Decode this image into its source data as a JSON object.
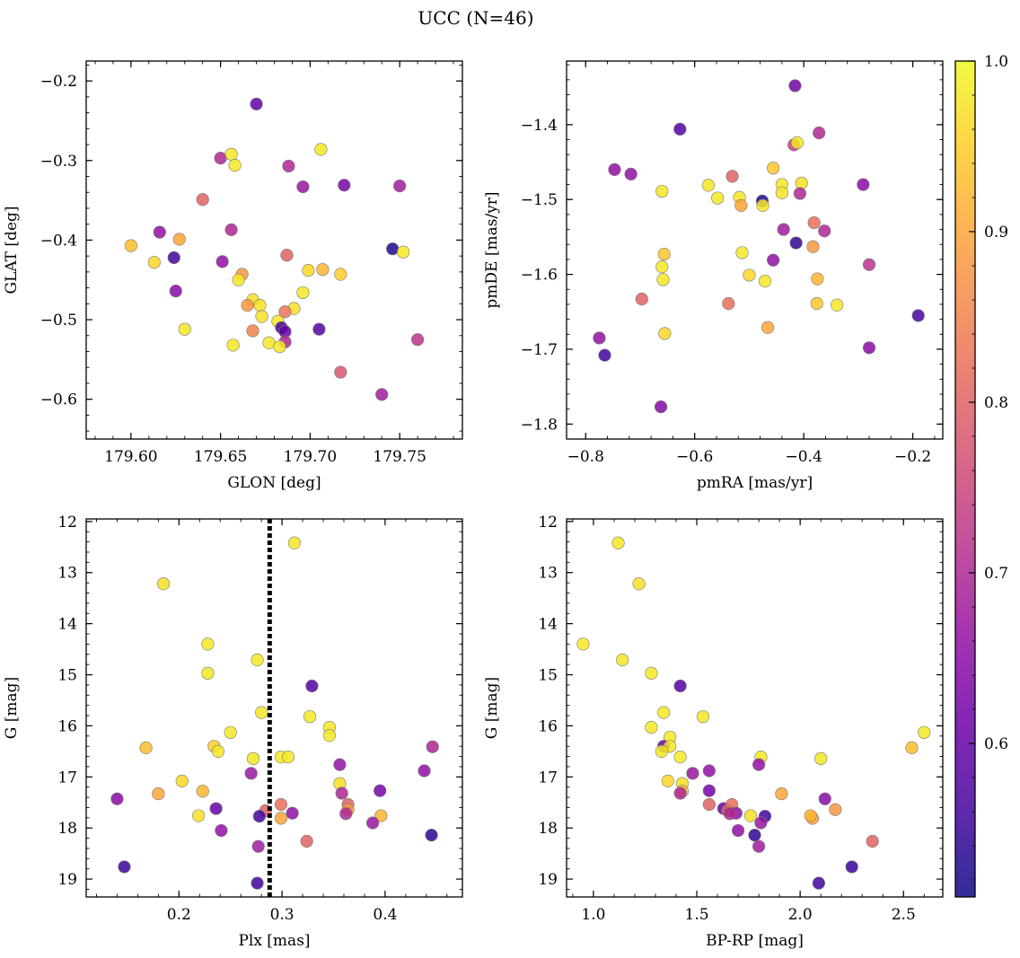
{
  "figure": {
    "title": "UCC (N=46)"
  },
  "colorbar": {
    "colormap": "plasma",
    "range": [
      0.51,
      1.0
    ],
    "ticks": [
      0.6,
      0.7,
      0.8,
      0.9,
      1.0
    ],
    "tick_labels": [
      "0.6",
      "0.7",
      "0.8",
      "0.9",
      "1.0"
    ]
  },
  "chart_data": [
    {
      "type": "scatter",
      "xlabel": "GLON [deg]",
      "ylabel": "GLAT [deg]",
      "xlim": [
        179.575,
        179.785
      ],
      "ylim": [
        -0.65,
        -0.175
      ],
      "y_inverted": false,
      "xticks": [
        179.6,
        179.65,
        179.7,
        179.75
      ],
      "xtick_labels": [
        "179.60",
        "179.65",
        "179.70",
        "179.75"
      ],
      "yticks": [
        -0.6,
        -0.5,
        -0.4,
        -0.3,
        -0.2
      ],
      "ytick_labels": [
        "−0.6",
        "−0.5",
        "−0.4",
        "−0.3",
        "−0.2"
      ],
      "points": [
        [
          179.67,
          -0.229,
          0.6
        ],
        [
          179.65,
          -0.297,
          0.7
        ],
        [
          179.656,
          -0.292,
          0.98
        ],
        [
          179.658,
          -0.306,
          0.98
        ],
        [
          179.688,
          -0.307,
          0.7
        ],
        [
          179.706,
          -0.286,
          0.98
        ],
        [
          179.696,
          -0.333,
          0.67
        ],
        [
          179.719,
          -0.331,
          0.63
        ],
        [
          179.75,
          -0.332,
          0.68
        ],
        [
          179.64,
          -0.349,
          0.8
        ],
        [
          179.616,
          -0.39,
          0.66
        ],
        [
          179.656,
          -0.387,
          0.7
        ],
        [
          179.6,
          -0.407,
          0.93
        ],
        [
          179.627,
          -0.399,
          0.9
        ],
        [
          179.746,
          -0.411,
          0.53
        ],
        [
          179.752,
          -0.415,
          0.98
        ],
        [
          179.613,
          -0.428,
          0.96
        ],
        [
          179.624,
          -0.422,
          0.56
        ],
        [
          179.651,
          -0.427,
          0.66
        ],
        [
          179.687,
          -0.419,
          0.8
        ],
        [
          179.662,
          -0.443,
          0.88
        ],
        [
          179.699,
          -0.438,
          0.96
        ],
        [
          179.707,
          -0.437,
          0.92
        ],
        [
          179.717,
          -0.443,
          0.95
        ],
        [
          179.66,
          -0.45,
          0.98
        ],
        [
          179.625,
          -0.464,
          0.65
        ],
        [
          179.668,
          -0.475,
          0.97
        ],
        [
          179.665,
          -0.482,
          0.88
        ],
        [
          179.672,
          -0.482,
          0.97
        ],
        [
          179.696,
          -0.466,
          0.98
        ],
        [
          179.691,
          -0.486,
          0.97
        ],
        [
          179.686,
          -0.49,
          0.83
        ],
        [
          179.673,
          -0.496,
          0.97
        ],
        [
          179.682,
          -0.502,
          0.98
        ],
        [
          179.684,
          -0.51,
          0.57
        ],
        [
          179.686,
          -0.515,
          0.6
        ],
        [
          179.668,
          -0.514,
          0.85
        ],
        [
          179.63,
          -0.512,
          0.98
        ],
        [
          179.705,
          -0.512,
          0.58
        ],
        [
          179.657,
          -0.532,
          0.98
        ],
        [
          179.677,
          -0.529,
          0.98
        ],
        [
          179.686,
          -0.528,
          0.7
        ],
        [
          179.683,
          -0.534,
          0.98
        ],
        [
          179.76,
          -0.525,
          0.72
        ],
        [
          179.717,
          -0.566,
          0.78
        ],
        [
          179.74,
          -0.594,
          0.68
        ]
      ]
    },
    {
      "type": "scatter",
      "xlabel": "pmRA [mas/yr]",
      "ylabel": "pmDE [mas/yr]",
      "xlim": [
        -0.835,
        -0.145
      ],
      "ylim": [
        -1.82,
        -1.315
      ],
      "y_inverted": false,
      "xticks": [
        -0.8,
        -0.6,
        -0.4,
        -0.2
      ],
      "xtick_labels": [
        "−0.8",
        "−0.6",
        "−0.4",
        "−0.2"
      ],
      "yticks": [
        -1.8,
        -1.7,
        -1.6,
        -1.5,
        -1.4
      ],
      "ytick_labels": [
        "−1.8",
        "−1.7",
        "−1.6",
        "−1.5",
        "−1.4"
      ],
      "points": [
        [
          -0.416,
          -1.348,
          0.62
        ],
        [
          -0.627,
          -1.406,
          0.58
        ],
        [
          -0.372,
          -1.411,
          0.7
        ],
        [
          -0.418,
          -1.427,
          0.74
        ],
        [
          -0.412,
          -1.424,
          0.98
        ],
        [
          -0.747,
          -1.46,
          0.66
        ],
        [
          -0.717,
          -1.466,
          0.66
        ],
        [
          -0.456,
          -1.458,
          0.94
        ],
        [
          -0.44,
          -1.48,
          0.98
        ],
        [
          -0.404,
          -1.478,
          0.97
        ],
        [
          -0.291,
          -1.48,
          0.65
        ],
        [
          -0.66,
          -1.489,
          0.98
        ],
        [
          -0.575,
          -1.481,
          0.98
        ],
        [
          -0.531,
          -1.469,
          0.8
        ],
        [
          -0.558,
          -1.498,
          0.98
        ],
        [
          -0.518,
          -1.497,
          0.98
        ],
        [
          -0.515,
          -1.508,
          0.9
        ],
        [
          -0.476,
          -1.502,
          0.53
        ],
        [
          -0.475,
          -1.508,
          0.98
        ],
        [
          -0.44,
          -1.491,
          0.98
        ],
        [
          -0.407,
          -1.492,
          0.7
        ],
        [
          -0.437,
          -1.54,
          0.68
        ],
        [
          -0.414,
          -1.558,
          0.54
        ],
        [
          -0.362,
          -1.542,
          0.7
        ],
        [
          -0.381,
          -1.531,
          0.82
        ],
        [
          -0.656,
          -1.573,
          0.94
        ],
        [
          -0.66,
          -1.59,
          0.98
        ],
        [
          -0.513,
          -1.571,
          0.98
        ],
        [
          -0.383,
          -1.563,
          0.88
        ],
        [
          -0.456,
          -1.581,
          0.66
        ],
        [
          -0.28,
          -1.587,
          0.72
        ],
        [
          -0.658,
          -1.607,
          0.98
        ],
        [
          -0.5,
          -1.601,
          0.96
        ],
        [
          -0.471,
          -1.609,
          0.98
        ],
        [
          -0.375,
          -1.606,
          0.92
        ],
        [
          -0.697,
          -1.633,
          0.8
        ],
        [
          -0.538,
          -1.639,
          0.82
        ],
        [
          -0.376,
          -1.639,
          0.94
        ],
        [
          -0.339,
          -1.641,
          0.98
        ],
        [
          -0.466,
          -1.671,
          0.9
        ],
        [
          -0.655,
          -1.679,
          0.96
        ],
        [
          -0.775,
          -1.685,
          0.66
        ],
        [
          -0.765,
          -1.708,
          0.56
        ],
        [
          -0.28,
          -1.698,
          0.65
        ],
        [
          -0.19,
          -1.655,
          0.57
        ],
        [
          -0.662,
          -1.777,
          0.64
        ]
      ]
    },
    {
      "type": "scatter",
      "xlabel": "Plx [mas]",
      "ylabel": "G [mag]",
      "xlim": [
        0.11,
        0.475
      ],
      "ylim": [
        19.35,
        11.95
      ],
      "y_inverted": true,
      "xticks": [
        0.2,
        0.3,
        0.4
      ],
      "xtick_labels": [
        "0.2",
        "0.3",
        "0.4"
      ],
      "yticks": [
        12,
        13,
        14,
        15,
        16,
        17,
        18,
        19
      ],
      "ytick_labels": [
        "12",
        "13",
        "14",
        "15",
        "16",
        "17",
        "18",
        "19"
      ],
      "vline": {
        "x": 0.288,
        "style": "dotted",
        "color": "#000000"
      },
      "points": [
        [
          0.312,
          12.42,
          0.98
        ],
        [
          0.185,
          13.22,
          0.97
        ],
        [
          0.228,
          14.4,
          0.98
        ],
        [
          0.276,
          14.71,
          0.98
        ],
        [
          0.228,
          14.97,
          0.98
        ],
        [
          0.329,
          15.22,
          0.58
        ],
        [
          0.28,
          15.74,
          0.98
        ],
        [
          0.327,
          15.82,
          0.98
        ],
        [
          0.346,
          16.03,
          0.98
        ],
        [
          0.25,
          16.13,
          0.98
        ],
        [
          0.346,
          16.19,
          0.98
        ],
        [
          0.168,
          16.43,
          0.93
        ],
        [
          0.234,
          16.4,
          0.95
        ],
        [
          0.238,
          16.5,
          0.98
        ],
        [
          0.299,
          16.61,
          0.98
        ],
        [
          0.272,
          16.64,
          0.98
        ],
        [
          0.306,
          16.61,
          0.98
        ],
        [
          0.446,
          16.41,
          0.7
        ],
        [
          0.356,
          16.76,
          0.66
        ],
        [
          0.27,
          16.93,
          0.67
        ],
        [
          0.438,
          16.88,
          0.66
        ],
        [
          0.203,
          17.08,
          0.96
        ],
        [
          0.356,
          17.13,
          0.97
        ],
        [
          0.14,
          17.43,
          0.65
        ],
        [
          0.18,
          17.33,
          0.9
        ],
        [
          0.223,
          17.28,
          0.92
        ],
        [
          0.358,
          17.32,
          0.7
        ],
        [
          0.395,
          17.27,
          0.62
        ],
        [
          0.236,
          17.62,
          0.6
        ],
        [
          0.219,
          17.76,
          0.97
        ],
        [
          0.284,
          17.66,
          0.8
        ],
        [
          0.299,
          17.54,
          0.82
        ],
        [
          0.31,
          17.71,
          0.66
        ],
        [
          0.364,
          17.54,
          0.8
        ],
        [
          0.364,
          17.64,
          0.88
        ],
        [
          0.362,
          17.72,
          0.7
        ],
        [
          0.278,
          17.77,
          0.56
        ],
        [
          0.299,
          17.81,
          0.9
        ],
        [
          0.396,
          17.76,
          0.92
        ],
        [
          0.388,
          17.9,
          0.67
        ],
        [
          0.241,
          18.05,
          0.66
        ],
        [
          0.324,
          18.26,
          0.8
        ],
        [
          0.277,
          18.36,
          0.68
        ],
        [
          0.445,
          18.14,
          0.54
        ],
        [
          0.147,
          18.76,
          0.55
        ],
        [
          0.276,
          19.08,
          0.56
        ]
      ]
    },
    {
      "type": "scatter",
      "xlabel": "BP-RP [mag]",
      "ylabel": "G [mag]",
      "xlim": [
        0.87,
        2.69
      ],
      "ylim": [
        19.35,
        11.95
      ],
      "y_inverted": true,
      "xticks": [
        1.0,
        1.5,
        2.0,
        2.5
      ],
      "xtick_labels": [
        "1.0",
        "1.5",
        "2.0",
        "2.5"
      ],
      "yticks": [
        12,
        13,
        14,
        15,
        16,
        17,
        18,
        19
      ],
      "ytick_labels": [
        "12",
        "13",
        "14",
        "15",
        "16",
        "17",
        "18",
        "19"
      ],
      "points": [
        [
          1.12,
          12.42,
          0.98
        ],
        [
          1.22,
          13.22,
          0.97
        ],
        [
          0.95,
          14.4,
          0.98
        ],
        [
          1.14,
          14.71,
          0.98
        ],
        [
          1.28,
          14.97,
          0.98
        ],
        [
          1.42,
          15.22,
          0.58
        ],
        [
          1.34,
          15.74,
          0.98
        ],
        [
          1.53,
          15.82,
          0.98
        ],
        [
          1.28,
          16.03,
          0.98
        ],
        [
          2.6,
          16.13,
          0.98
        ],
        [
          1.37,
          16.22,
          0.98
        ],
        [
          2.54,
          16.43,
          0.93
        ],
        [
          1.34,
          16.4,
          0.6
        ],
        [
          1.37,
          16.4,
          0.98
        ],
        [
          1.33,
          16.5,
          0.98
        ],
        [
          1.42,
          16.61,
          0.98
        ],
        [
          1.81,
          16.61,
          0.98
        ],
        [
          2.1,
          16.64,
          0.98
        ],
        [
          1.8,
          16.76,
          0.66
        ],
        [
          1.48,
          16.93,
          0.67
        ],
        [
          1.56,
          16.88,
          0.66
        ],
        [
          1.36,
          17.08,
          0.96
        ],
        [
          1.43,
          17.13,
          0.97
        ],
        [
          2.12,
          17.43,
          0.65
        ],
        [
          1.91,
          17.33,
          0.9
        ],
        [
          1.43,
          17.28,
          0.92
        ],
        [
          1.42,
          17.32,
          0.7
        ],
        [
          1.56,
          17.27,
          0.62
        ],
        [
          1.63,
          17.62,
          0.6
        ],
        [
          1.76,
          17.76,
          0.97
        ],
        [
          1.65,
          17.66,
          0.8
        ],
        [
          1.67,
          17.54,
          0.82
        ],
        [
          1.69,
          17.71,
          0.66
        ],
        [
          1.56,
          17.54,
          0.8
        ],
        [
          2.17,
          17.64,
          0.88
        ],
        [
          1.66,
          17.72,
          0.7
        ],
        [
          1.83,
          17.77,
          0.56
        ],
        [
          2.06,
          17.81,
          0.9
        ],
        [
          2.05,
          17.76,
          0.92
        ],
        [
          1.81,
          17.9,
          0.67
        ],
        [
          1.7,
          18.05,
          0.66
        ],
        [
          2.35,
          18.26,
          0.8
        ],
        [
          1.8,
          18.36,
          0.68
        ],
        [
          1.78,
          18.14,
          0.54
        ],
        [
          2.25,
          18.76,
          0.55
        ],
        [
          2.09,
          19.08,
          0.56
        ]
      ]
    }
  ]
}
